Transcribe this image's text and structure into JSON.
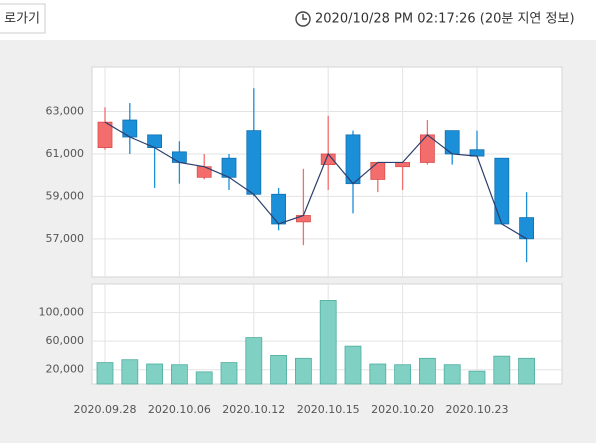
{
  "header": {
    "button": "로가기",
    "timestamp": "2020/10/28 PM 02:17:26 (20분 지연 정보)"
  },
  "chart_data": [
    {
      "type": "candlestick",
      "open": [
        61300,
        62600,
        61900,
        61100,
        59900,
        60800,
        62100,
        59100,
        57800,
        60500,
        61900,
        59800,
        60400,
        60600,
        62100,
        61200,
        60800,
        58000
      ],
      "high": [
        63200,
        63400,
        61900,
        61600,
        61000,
        61000,
        64100,
        59400,
        60300,
        62800,
        62100,
        60600,
        60600,
        62600,
        62100,
        62100,
        60800,
        59200
      ],
      "low": [
        61200,
        61000,
        59400,
        59600,
        59800,
        59300,
        59000,
        57400,
        56700,
        59300,
        58200,
        59200,
        59300,
        60500,
        60500,
        60900,
        57700,
        55900
      ],
      "close": [
        62500,
        61800,
        61300,
        60600,
        60400,
        59900,
        59100,
        57700,
        58100,
        61000,
        59600,
        60600,
        60600,
        61900,
        61000,
        60900,
        57700,
        57000
      ],
      "up_color": "#f46d6d",
      "down_color": "#1b8fd8",
      "line_color": "#2c3e6b",
      "ylim": [
        55200,
        65100
      ],
      "yticks": [
        {
          "value": 57000,
          "label": "57,000"
        },
        {
          "value": 59000,
          "label": "59,000"
        },
        {
          "value": 61000,
          "label": "61,000"
        },
        {
          "value": 63000,
          "label": "63,000"
        }
      ],
      "grid": true
    },
    {
      "type": "bar",
      "categories": [
        "2020.09.28",
        null,
        null,
        "2020.10.06",
        null,
        null,
        "2020.10.12",
        null,
        null,
        "2020.10.15",
        null,
        null,
        "2020.10.20",
        null,
        null,
        "2020.10.23",
        null,
        null
      ],
      "values": [
        30000,
        34000,
        28000,
        27000,
        17000,
        30000,
        65000,
        40000,
        36000,
        117000,
        53000,
        28000,
        27000,
        36000,
        27000,
        18000,
        39000,
        36000
      ],
      "color": "#80d0c4",
      "ylim": [
        0,
        140000
      ],
      "yticks": [
        {
          "value": 20000,
          "label": "20,000"
        },
        {
          "value": 60000,
          "label": "60,000"
        },
        {
          "value": 100000,
          "label": "100,000"
        }
      ],
      "grid": true
    }
  ]
}
